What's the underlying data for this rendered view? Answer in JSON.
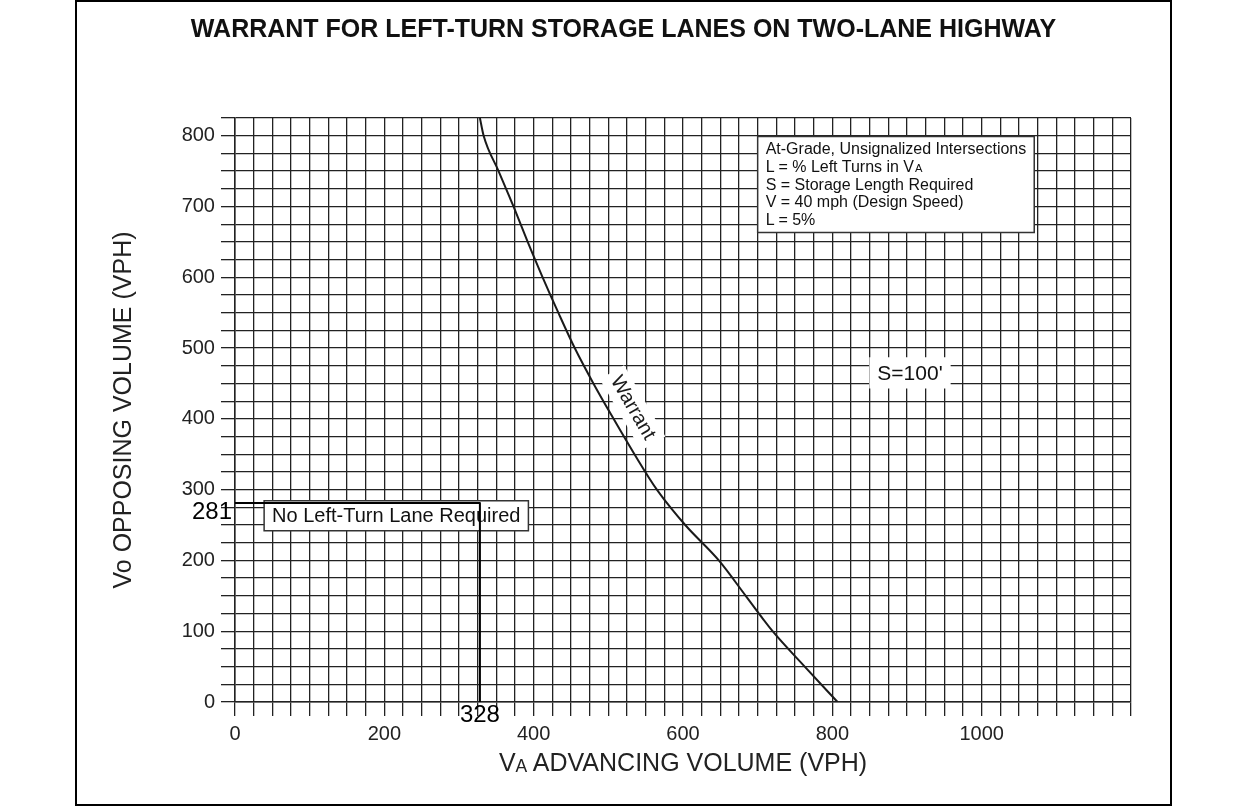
{
  "chart_data": {
    "type": "line",
    "title": "WARRANT FOR LEFT-TURN STORAGE LANES ON TWO-LANE HIGHWAY",
    "xlabel": "V$_{A}$ ADVANCING VOLUME (VPH)",
    "ylabel": "Vo OPPOSING VOLUME (VPH)",
    "series": [
      {
        "name": "Warrant",
        "color": "#1a1a1a",
        "x": [
          328,
          333,
          353,
          373,
          392,
          412,
          433,
          455,
          480,
          507,
          535,
          565,
          603,
          648,
          684,
          720,
          763,
          807
        ],
        "values": [
          825,
          800,
          750,
          700,
          650,
          600,
          550,
          500,
          450,
          400,
          350,
          300,
          250,
          200,
          150,
          100,
          50,
          0
        ]
      },
      {
        "color": "#000000",
        "x": [
          0,
          328,
          328
        ],
        "values": [
          281,
          281,
          0
        ]
      }
    ],
    "annotations": [
      "At-Grade, Unsignalized Intersections\nL = % Left Turns in V$_{A}$\nS = Storage Length Required\nV = 40 mph (Design Speed)\nL = 5%",
      "S=100'",
      "No Left-Turn Lane Required",
      {
        "text": "281",
        "x": 0,
        "y": 281
      },
      {
        "text": "328",
        "x": 328,
        "y": 0
      }
    ],
    "xlim": [
      0,
      1200
    ],
    "ylim": [
      0,
      825
    ],
    "xticks": [
      0,
      {
        "value": 25,
        "label": null
      },
      {
        "value": 50,
        "label": null
      },
      {
        "value": 75,
        "label": null
      },
      {
        "value": 100,
        "label": null
      },
      {
        "value": 125,
        "label": null
      },
      {
        "value": 150,
        "label": null
      },
      {
        "value": 175,
        "label": null
      },
      200,
      {
        "value": 225,
        "label": null
      },
      {
        "value": 250,
        "label": null
      },
      {
        "value": 275,
        "label": null
      },
      {
        "value": 300,
        "label": null
      },
      {
        "value": 325,
        "label": null
      },
      {
        "value": 350,
        "label": null
      },
      {
        "value": 375,
        "label": null
      },
      400,
      {
        "value": 425,
        "label": null
      },
      {
        "value": 450,
        "label": null
      },
      {
        "value": 475,
        "label": null
      },
      {
        "value": 500,
        "label": null
      },
      {
        "value": 525,
        "label": null
      },
      {
        "value": 550,
        "label": null
      },
      {
        "value": 575,
        "label": null
      },
      600,
      {
        "value": 625,
        "label": null
      },
      {
        "value": 650,
        "label": null
      },
      {
        "value": 675,
        "label": null
      },
      {
        "value": 700,
        "label": null
      },
      {
        "value": 725,
        "label": null
      },
      {
        "value": 750,
        "label": null
      },
      {
        "value": 775,
        "label": null
      },
      800,
      {
        "value": 825,
        "label": null
      },
      {
        "value": 850,
        "label": null
      },
      {
        "value": 875,
        "label": null
      },
      {
        "value": 900,
        "label": null
      },
      {
        "value": 925,
        "label": null
      },
      {
        "value": 950,
        "label": null
      },
      {
        "value": 975,
        "label": null
      },
      1000,
      {
        "value": 1025,
        "label": null
      },
      {
        "value": 1050,
        "label": null
      },
      {
        "value": 1075,
        "label": null
      },
      {
        "value": 1100,
        "label": null
      },
      {
        "value": 1125,
        "label": null
      },
      {
        "value": 1150,
        "label": null
      },
      {
        "value": 1175,
        "label": null
      },
      {
        "value": 1200,
        "label": null
      }
    ],
    "yticks": [
      0,
      {
        "value": 25,
        "label": null
      },
      {
        "value": 50,
        "label": null
      },
      {
        "value": 75,
        "label": null
      },
      100,
      {
        "value": 125,
        "label": null
      },
      {
        "value": 150,
        "label": null
      },
      {
        "value": 175,
        "label": null
      },
      200,
      {
        "value": 225,
        "label": null
      },
      {
        "value": 250,
        "label": null
      },
      {
        "value": 275,
        "label": null
      },
      300,
      {
        "value": 325,
        "label": null
      },
      {
        "value": 350,
        "label": null
      },
      {
        "value": 375,
        "label": null
      },
      400,
      {
        "value": 425,
        "label": null
      },
      {
        "value": 450,
        "label": null
      },
      {
        "value": 475,
        "label": null
      },
      500,
      {
        "value": 525,
        "label": null
      },
      {
        "value": 550,
        "label": null
      },
      {
        "value": 575,
        "label": null
      },
      600,
      {
        "value": 625,
        "label": null
      },
      {
        "value": 650,
        "label": null
      },
      {
        "value": 675,
        "label": null
      },
      700,
      {
        "value": 725,
        "label": null
      },
      {
        "value": 750,
        "label": null
      },
      {
        "value": 775,
        "label": null
      },
      800,
      {
        "value": 825,
        "label": null
      }
    ],
    "grid": true,
    "marker": "none",
    "line_style": "solid"
  }
}
